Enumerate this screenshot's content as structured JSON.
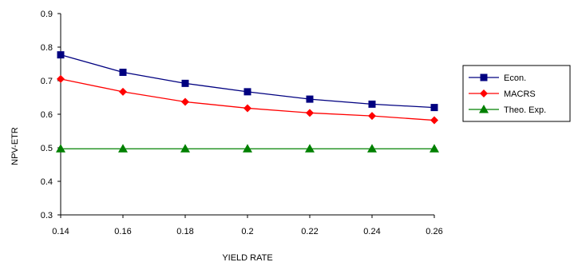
{
  "chart_data": {
    "type": "line",
    "xlabel": "YIELD RATE",
    "ylabel": "NPV-ETR",
    "x": [
      0.14,
      0.16,
      0.18,
      0.2,
      0.22,
      0.24,
      0.26
    ],
    "x_tick_labels": [
      "0.14",
      "0.16",
      "0.18",
      "0.2",
      "0.22",
      "0.24",
      "0.26"
    ],
    "ylim": [
      0.3,
      0.9
    ],
    "y_ticks": [
      0.3,
      0.4,
      0.5,
      0.6,
      0.7,
      0.8,
      0.9
    ],
    "y_tick_labels": [
      "0.3",
      "0.4",
      "0.5",
      "0.6",
      "0.7",
      "0.8",
      "0.9"
    ],
    "grid": false,
    "legend_position": "right",
    "series": [
      {
        "name": "Econ.",
        "color": "#000080",
        "marker": "square",
        "values": [
          0.777,
          0.725,
          0.692,
          0.667,
          0.645,
          0.63,
          0.62
        ]
      },
      {
        "name": "MACRS",
        "color": "#ff0000",
        "marker": "diamond",
        "values": [
          0.705,
          0.667,
          0.637,
          0.618,
          0.604,
          0.595,
          0.582
        ]
      },
      {
        "name": "Theo. Exp.",
        "color": "#008000",
        "marker": "triangle",
        "values": [
          0.497,
          0.497,
          0.497,
          0.497,
          0.497,
          0.497,
          0.497
        ]
      }
    ]
  }
}
